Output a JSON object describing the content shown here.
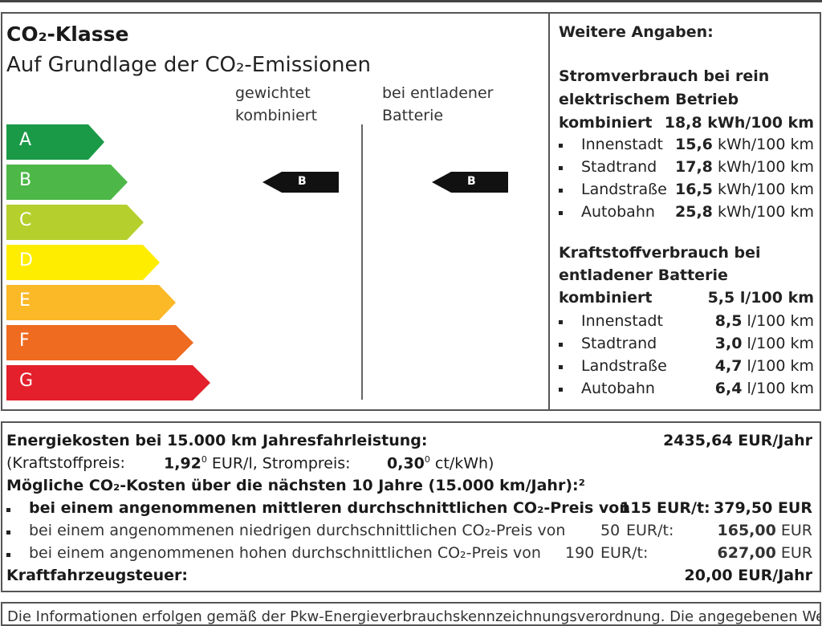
{
  "label": {
    "title": "CO₂-Klasse",
    "subtitle": "Auf Grundlage der CO₂-Emissionen",
    "col_weighted_1": "gewichtet",
    "col_weighted_2": "kombiniert",
    "col_discharged_1": "bei entladener",
    "col_discharged_2": "Batterie",
    "classes": [
      {
        "letter": "A",
        "color": "#1a9a47"
      },
      {
        "letter": "B",
        "color": "#4db848"
      },
      {
        "letter": "C",
        "color": "#b5cf2c"
      },
      {
        "letter": "D",
        "color": "#ffed00"
      },
      {
        "letter": "E",
        "color": "#fbb827"
      },
      {
        "letter": "F",
        "color": "#ee6b20"
      },
      {
        "letter": "G",
        "color": "#e3202b"
      }
    ],
    "weighted_class": "B",
    "discharged_class": "B"
  },
  "info": {
    "heading": "Weitere Angaben:",
    "power": {
      "heading_1": "Stromverbrauch bei rein",
      "heading_2": "elektrischem Betrieb",
      "combined_label": "kombiniert",
      "combined_value": "18,8 kWh/100 km",
      "rows": [
        {
          "label": "Innenstadt",
          "value": "15,6",
          "unit": " kWh/100 km"
        },
        {
          "label": "Stadtrand",
          "value": "17,8",
          "unit": " kWh/100 km"
        },
        {
          "label": "Landstraße",
          "value": "16,5",
          "unit": " kWh/100 km"
        },
        {
          "label": "Autobahn",
          "value": "25,8",
          "unit": " kWh/100 km"
        }
      ]
    },
    "fuel": {
      "heading_1": "Kraftstoffverbrauch bei",
      "heading_2": "entladener Batterie",
      "combined_label": "kombiniert",
      "combined_value": "5,5 l/100 km",
      "rows": [
        {
          "label": "Innenstadt",
          "value": "8,5",
          "unit": " l/100 km"
        },
        {
          "label": "Stadtrand",
          "value": "3,0",
          "unit": " l/100 km"
        },
        {
          "label": "Landstraße",
          "value": "4,7",
          "unit": " l/100 km"
        },
        {
          "label": "Autobahn",
          "value": "6,4",
          "unit": " l/100 km"
        }
      ]
    }
  },
  "costs": {
    "energy_label": "Energiekosten bei 15.000 km Jahresfahrleistung:",
    "energy_value": "2435,64 EUR/Jahr",
    "fuel_price_label": "(Kraftstoffpreis:",
    "fuel_price_value": "1,92",
    "fuel_price_sup": "0",
    "fuel_price_unit": " EUR/l, Strompreis:",
    "power_price_value": "0,30",
    "power_price_sup": "0",
    "power_price_unit": " ct/kWh)",
    "co2_heading": "Mögliche CO₂-Kosten über die nächsten 10 Jahre (15.000 km/Jahr):²",
    "scenarios": [
      {
        "text": "bei einem angenommenen mittleren durchschnittlichen CO₂-Preis von",
        "price": "115",
        "unit": "EUR/t:",
        "amount": "379,50 EUR",
        "bold": true
      },
      {
        "text": "bei einem angenommenen niedrigen durchschnittlichen CO₂-Preis von",
        "price": "50",
        "unit": "EUR/t:",
        "amount": "165,00",
        "amount_unit": " EUR",
        "bold": false
      },
      {
        "text": "bei einem angenommenen hohen durchschnittlichen CO₂-Preis von",
        "price": "190",
        "unit": "EUR/t:",
        "amount": "627,00",
        "amount_unit": " EUR",
        "bold": false
      }
    ],
    "tax_label": "Kraftfahrzeugsteuer:",
    "tax_value": "20,00 EUR/Jahr"
  },
  "footer": {
    "text": "Die Informationen erfolgen gemäß der Pkw-Energieverbrauchskennzeichnungsverordnung. Die angegebenen Werte wurden"
  }
}
